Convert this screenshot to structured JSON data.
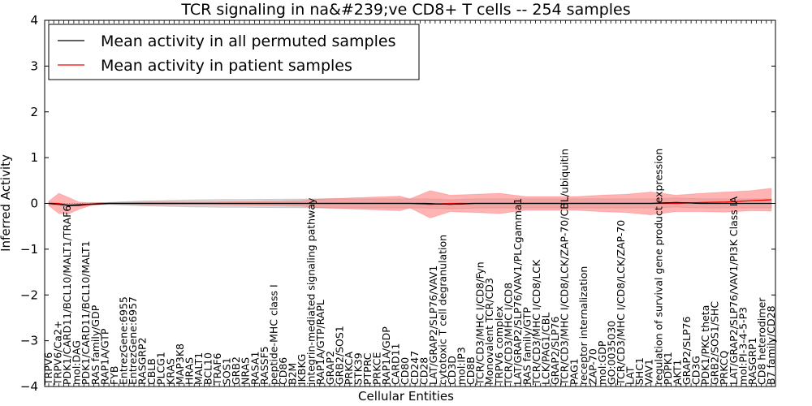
{
  "chart_data": {
    "type": "line",
    "title": "TCR signaling in na&#239;ve CD8+ T cells -- 254 samples",
    "xlabel": "Cellular Entities",
    "ylabel": "Inferred Activity",
    "ylim": [
      -4,
      4
    ],
    "yticks": [
      -4,
      -3,
      -2,
      -1,
      0,
      1,
      2,
      3,
      4
    ],
    "grid": false,
    "legend_position": "top-left",
    "x_count": 145,
    "x_tick_labels": [
      "TRPV6",
      "TRPV6/Ca2+",
      "PDK1/CARD11/BCL10/MALT1/TRAF6",
      "mol:DAG",
      "PDK1/CARD11/BCL10/MALT1",
      "RAS family/GDP",
      "RAP1A/GTP",
      "FYB",
      "EntrezGene:6955",
      "EntrezGene:6957",
      "RASGRP2",
      "CBLB",
      "PLCG1",
      "KRAS",
      "MAP3K8",
      "HRAS",
      "MALT1",
      "BCL10",
      "TRAF6",
      "SOS1",
      "GRB2",
      "NRAS",
      "RASA1",
      "RASSF5",
      "peptide-MHC class I",
      "CD86",
      "B2M",
      "IKBKG",
      "integrin-mediated signaling pathway",
      "RAP1A/GTP/RAPL",
      "GRAP2",
      "GRB2/SOS1",
      "PRKCA",
      "STK39",
      "PTPRC",
      "PRKCE",
      "RAP1A/GDP",
      "CARD11",
      "CD80",
      "CD247",
      "CD28",
      "LAT/GRAP2/SLP76/VAV1",
      "cytotoxic T cell degranulation",
      "CD3D",
      "mol:IP3",
      "CD8B",
      "TCR/CD3/MHC I/CD8/Fyn",
      "Monovalent TCR/CD3",
      "TRPV6 complex",
      "TCR/CD3/MHC I/CD8",
      "LAT/GRAP2/SLP76/VAV1/PLCgamma1",
      "RAS family/GTP",
      "TCR/CD3/MHC I/CD8/LCK",
      "LCK/PAG1/CBL",
      "GRAP2/SLP76",
      "TCR/CD3/MHC I/CD8/LCK/ZAP-70/CBL/ubiquitin",
      "PAG1",
      "receptor internalization",
      "ZAP-70",
      "mol:GDP",
      "GO:0035030",
      "TCR/CD3/MHC I/CD8/LCK/ZAP-70",
      "LAT",
      "SHC1",
      "VAV1",
      "regulation of survival gene product expression",
      "PDPK1",
      "AKT1",
      "GRAP2/SLP76",
      "CD3G",
      "PDK1/PKC theta",
      "GRB2/SOS1/SHC",
      "PRKCQ",
      "LAT/GRAP2/SLP76/VAV1/PI3K Class IA",
      "mol:PI-3-4-5-P3",
      "RASGRP1",
      "CD8 heterodimer",
      "B7 family/CD28"
    ],
    "series": [
      {
        "name": "Mean activity in all permuted samples",
        "color": "#000000",
        "band_color": "#bdbdbd",
        "anchor_x": [
          0,
          4,
          8,
          12,
          18,
          30,
          45,
          55,
          62,
          68,
          75,
          80,
          85,
          90,
          95,
          100,
          105,
          110,
          115,
          120,
          125,
          130,
          135,
          140,
          144
        ],
        "mean": [
          0.0,
          -0.04,
          -0.02,
          0.0,
          0.0,
          0.0,
          0.0,
          0.0,
          0.0,
          0.0,
          0.0,
          -0.02,
          0.0,
          0.0,
          0.0,
          0.0,
          0.0,
          0.0,
          0.0,
          0.0,
          0.02,
          0.0,
          0.0,
          0.0,
          0.0
        ],
        "band_half": [
          0.03,
          0.02,
          0.02,
          0.02,
          0.05,
          0.08,
          0.09,
          0.1,
          0.1,
          0.1,
          0.1,
          0.1,
          0.1,
          0.1,
          0.1,
          0.1,
          0.1,
          0.1,
          0.1,
          0.1,
          0.1,
          0.1,
          0.1,
          0.1,
          0.1
        ]
      },
      {
        "name": "Mean activity in patient samples",
        "color": "#ff0000",
        "band_color": "#ff8080",
        "anchor_x": [
          0,
          2,
          4,
          6,
          8,
          10,
          12,
          15,
          20,
          30,
          40,
          50,
          55,
          60,
          65,
          70,
          72,
          76,
          80,
          85,
          90,
          95,
          100,
          105,
          110,
          115,
          120,
          125,
          130,
          135,
          140,
          144
        ],
        "mean": [
          0.0,
          0.0,
          -0.05,
          -0.05,
          -0.02,
          0.0,
          0.0,
          0.0,
          0.0,
          0.0,
          0.0,
          0.0,
          0.0,
          0.0,
          0.0,
          0.0,
          0.0,
          -0.02,
          0.0,
          0.0,
          0.0,
          0.0,
          0.0,
          0.0,
          0.0,
          0.0,
          0.0,
          0.0,
          0.02,
          0.03,
          0.06,
          0.08
        ],
        "band_half": [
          0.05,
          0.22,
          0.18,
          0.08,
          0.04,
          0.02,
          0.02,
          0.02,
          0.03,
          0.03,
          0.04,
          0.06,
          0.1,
          0.12,
          0.14,
          0.16,
          0.1,
          0.3,
          0.18,
          0.2,
          0.22,
          0.15,
          0.15,
          0.15,
          0.18,
          0.2,
          0.25,
          0.18,
          0.2,
          0.22,
          0.22,
          0.25
        ]
      }
    ]
  }
}
